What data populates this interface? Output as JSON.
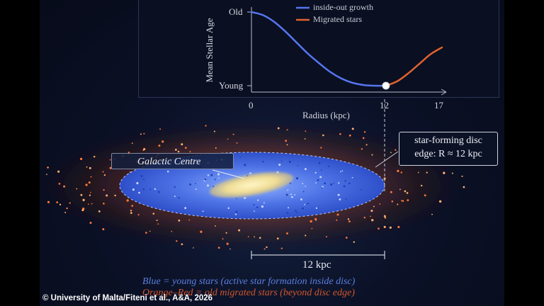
{
  "chart_data": {
    "type": "line",
    "title": "",
    "xlabel": "Radius (kpc)",
    "ylabel": "Mean Stellar Age",
    "xlim": [
      0,
      17
    ],
    "x_ticks": [
      "0",
      "12",
      "17"
    ],
    "y_ticks": [
      "Old",
      "Young"
    ],
    "legend_position": "top",
    "series": [
      {
        "name": "inside-out growth",
        "color": "#5577f0",
        "x": [
          0,
          1,
          2,
          3,
          4,
          5,
          6,
          7,
          8,
          9,
          10,
          11,
          12
        ],
        "y": [
          1.0,
          0.96,
          0.87,
          0.74,
          0.59,
          0.44,
          0.31,
          0.19,
          0.1,
          0.04,
          0.01,
          0.0,
          0.0
        ]
      },
      {
        "name": "Migrated stars",
        "color": "#e0622e",
        "x": [
          12,
          13,
          14,
          15,
          16,
          17
        ],
        "y": [
          0.0,
          0.06,
          0.17,
          0.3,
          0.43,
          0.52
        ]
      }
    ],
    "marker": {
      "x": 12,
      "y": 0.0
    }
  },
  "diagram": {
    "galactic_centre_label": "Galactic Centre",
    "callout_line1": "star-forming disc",
    "callout_line2": "edge: R ≈ 12 kpc",
    "scale_label": "12 kpc",
    "caption_blue": "Blue = young stars (active star formation inside disc)",
    "caption_orange": "Orange–Red = old migrated stars (beyond disc edge)",
    "credit": "© University of Malta/Fiteni et al., A&A, 2026",
    "colors": {
      "young": "#3f63e0",
      "old": "#e0622e",
      "core": "#f3e7a8",
      "background": "#0b1127"
    }
  }
}
